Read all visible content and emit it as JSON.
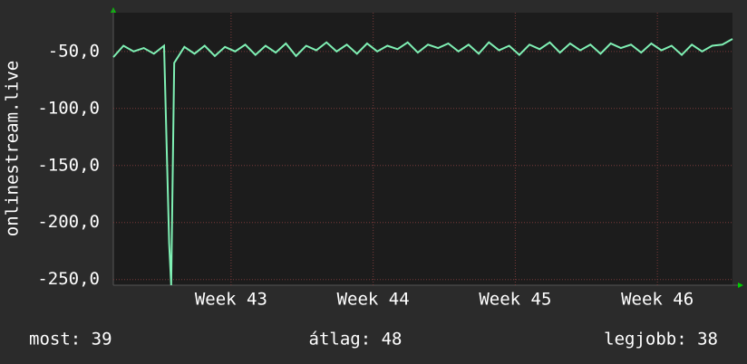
{
  "chart_data": {
    "type": "line",
    "ylabel": "onlinestream.live",
    "x": [
      0,
      0.5,
      1,
      1.5,
      2,
      2.5,
      2.75,
      2.85,
      3,
      3.5,
      4,
      4.5,
      5,
      5.5,
      6,
      6.5,
      7,
      7.5,
      8,
      8.5,
      9,
      9.5,
      10,
      10.5,
      11,
      11.5,
      12,
      12.5,
      13,
      13.5,
      14,
      14.5,
      15,
      15.5,
      16,
      16.5,
      17,
      17.5,
      18,
      18.5,
      19,
      19.5,
      20,
      20.5,
      21,
      21.5,
      22,
      22.5,
      23,
      23.5,
      24,
      24.5,
      25,
      25.5,
      26,
      26.5,
      27,
      27.5,
      28,
      28.5,
      29,
      29.5,
      30,
      30.5
    ],
    "series": [
      {
        "color": "#7ff0b4",
        "values": [
          -55,
          -45,
          -50,
          -47,
          -52,
          -45,
          -218,
          -255,
          -60,
          -46,
          -52,
          -45,
          -54,
          -46,
          -50,
          -44,
          -53,
          -45,
          -51,
          -43,
          -54,
          -45,
          -49,
          -42,
          -50,
          -44,
          -52,
          -43,
          -50,
          -45,
          -48,
          -42,
          -51,
          -44,
          -47,
          -43,
          -50,
          -44,
          -52,
          -42,
          -49,
          -45,
          -53,
          -44,
          -48,
          -42,
          -51,
          -43,
          -49,
          -44,
          -52,
          -43,
          -47,
          -44,
          -51,
          -43,
          -49,
          -45,
          -53,
          -44,
          -50,
          -45,
          -44,
          -39
        ]
      }
    ],
    "xlim": [
      0,
      30.5
    ],
    "xticks": [
      {
        "value": 5.8,
        "label": "Week 43"
      },
      {
        "value": 12.8,
        "label": "Week 44"
      },
      {
        "value": 19.8,
        "label": "Week 45"
      },
      {
        "value": 26.8,
        "label": "Week 46"
      }
    ],
    "ylim": [
      -255,
      -16
    ],
    "yticks": [
      {
        "value": -250,
        "label": "-250,0"
      },
      {
        "value": -200,
        "label": "-200,0"
      },
      {
        "value": -150,
        "label": "-150,0"
      },
      {
        "value": -100,
        "label": "-100,0"
      },
      {
        "value": -50,
        "label": "-50,0"
      }
    ],
    "grid": true,
    "stats": [
      "most: 39",
      "átlag: 48",
      "legjobb: 38"
    ]
  }
}
